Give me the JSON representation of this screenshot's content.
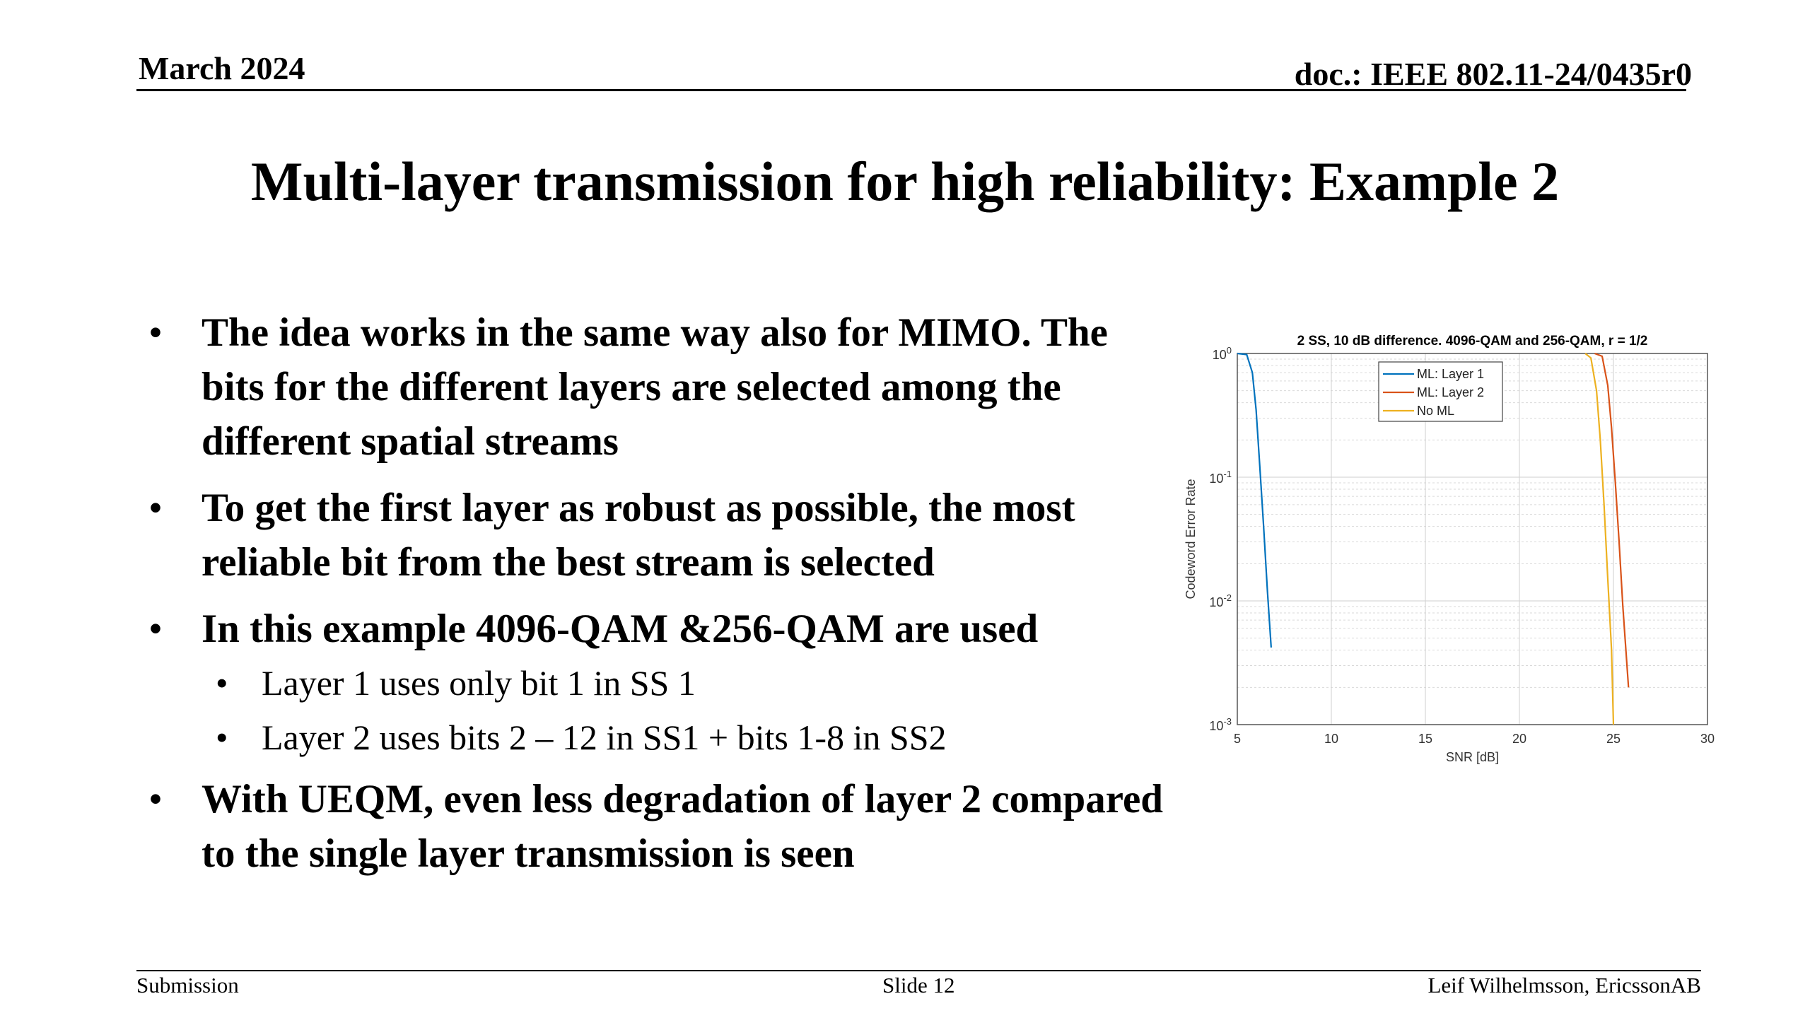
{
  "header": {
    "date": "March 2024",
    "doc": "doc.: IEEE 802.11-24/0435r0"
  },
  "title": "Multi-layer transmission for high reliability: Example 2",
  "bullets": [
    {
      "text": "The idea works in the same way also for MIMO. The bits for the different layers are selected among the different spatial streams"
    },
    {
      "text": "To get the first layer as robust as possible, the most reliable bit from the best stream is selected"
    },
    {
      "text": "In this example 4096-QAM &256-QAM are used"
    },
    {
      "text": "With UEQM, even less degradation of layer 2 compared to the single layer transmission is seen"
    }
  ],
  "sub_bullets": [
    {
      "text": "Layer 1 uses only bit 1 in SS 1"
    },
    {
      "text": "Layer 2 uses bits 2 – 12 in SS1 + bits 1-8 in SS2"
    }
  ],
  "bullet_glyph": "•",
  "chart_data": {
    "type": "line",
    "title": "2 SS, 10 dB difference. 4096-QAM and 256-QAM, r = 1/2",
    "xlabel": "SNR [dB]",
    "ylabel": "Codeword Error Rate",
    "xlim": [
      5,
      30
    ],
    "ylim": [
      0.001,
      1
    ],
    "yscale": "log",
    "grid": true,
    "legend_position": "top-left",
    "x_ticks": [
      "5",
      "10",
      "15",
      "20",
      "25",
      "30"
    ],
    "y_ticks": [
      {
        "base": "10",
        "exp": "0"
      },
      {
        "base": "10",
        "exp": "-1"
      },
      {
        "base": "10",
        "exp": "-2"
      },
      {
        "base": "10",
        "exp": "-3"
      }
    ],
    "series": [
      {
        "name": "ML: Layer 1",
        "color": "#0072BD",
        "x": [
          5.0,
          5.5,
          5.8,
          6.0,
          6.2,
          6.4,
          6.6,
          6.8
        ],
        "y": [
          1.0,
          0.98,
          0.7,
          0.35,
          0.12,
          0.04,
          0.012,
          0.0042
        ]
      },
      {
        "name": "ML: Layer 2",
        "color": "#D95319",
        "x": [
          24.0,
          24.4,
          24.7,
          24.9,
          25.1,
          25.3,
          25.5,
          25.8
        ],
        "y": [
          1.0,
          0.95,
          0.55,
          0.25,
          0.09,
          0.03,
          0.009,
          0.002
        ]
      },
      {
        "name": "No ML",
        "color": "#EDB120",
        "x": [
          23.5,
          23.8,
          24.1,
          24.3,
          24.5,
          24.7,
          24.9,
          25.0
        ],
        "y": [
          1.0,
          0.92,
          0.5,
          0.2,
          0.06,
          0.015,
          0.004,
          0.001
        ]
      }
    ]
  },
  "footer": {
    "left": "Submission",
    "center": "Slide 12",
    "right": "Leif Wilhelmsson, EricssonAB"
  }
}
